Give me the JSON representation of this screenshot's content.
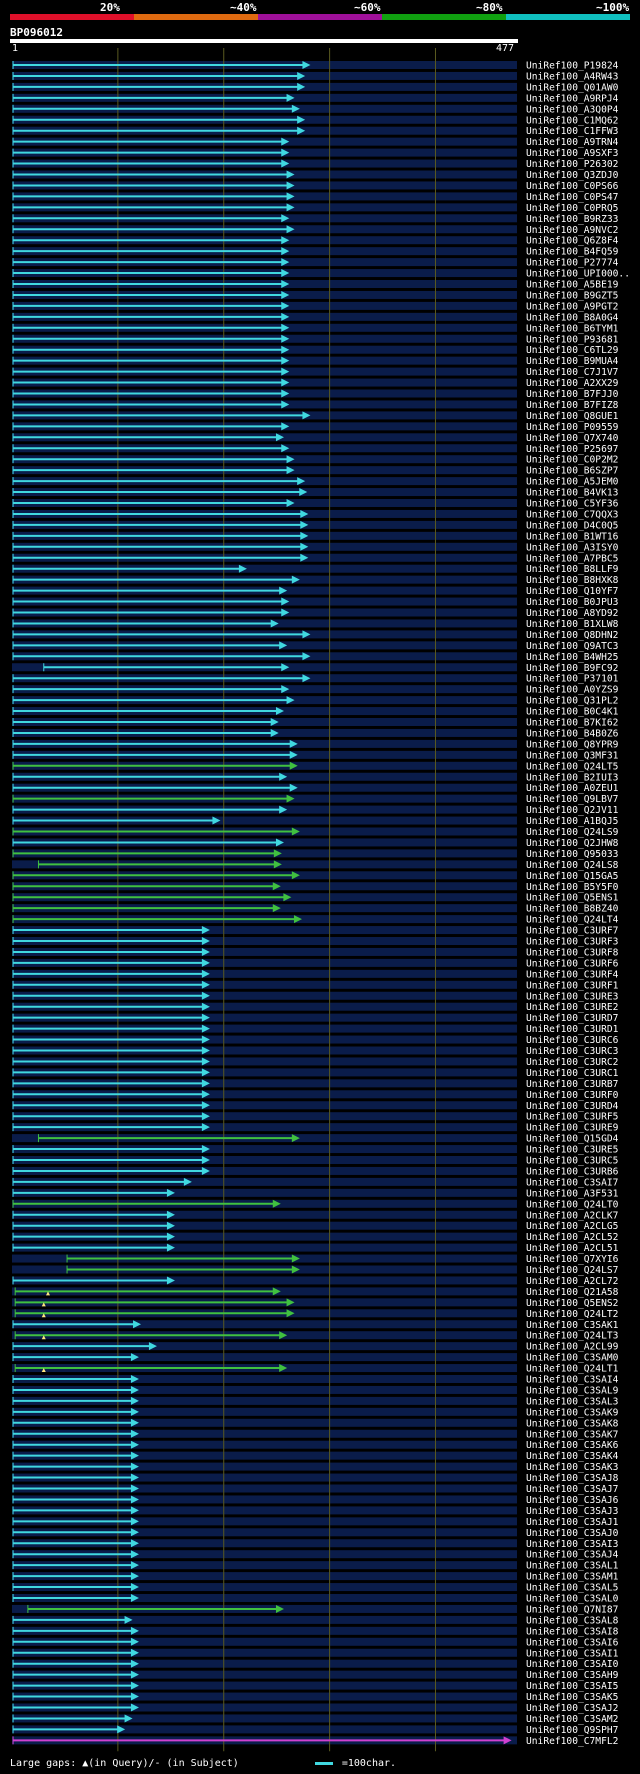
{
  "legend": [
    {
      "label": "20%",
      "color": "#e0102a"
    },
    {
      "label": "~40%",
      "color": "#e06a10"
    },
    {
      "label": "~60%",
      "color": "#a0109a"
    },
    {
      "label": "~80%",
      "color": "#10a010"
    },
    {
      "label": "~100%",
      "color": "#10c0c0"
    }
  ],
  "query": {
    "name": "BP096012",
    "start": "1",
    "end": "477"
  },
  "colors": {
    "cyan": "#40d8e0",
    "green": "#40c040",
    "magenta": "#d040d0",
    "grid": "#5a5a20",
    "row": "#0a1c4a"
  },
  "footer": {
    "gaps_text": "Large gaps: ▲(in Query)/- (in Subject)",
    "scale_text": "=100char."
  },
  "hits": [
    {
      "name": "UniRef100_P19824",
      "start": 1,
      "end": 280,
      "color": "cyan"
    },
    {
      "name": "UniRef100_A4RW43",
      "start": 1,
      "end": 275,
      "color": "cyan"
    },
    {
      "name": "UniRef100_Q01AW0",
      "start": 1,
      "end": 275,
      "color": "cyan"
    },
    {
      "name": "UniRef100_A9RPJ4",
      "start": 1,
      "end": 265,
      "color": "cyan"
    },
    {
      "name": "UniRef100_A3Q0P4",
      "start": 1,
      "end": 270,
      "color": "cyan"
    },
    {
      "name": "UniRef100_C1MQ62",
      "start": 1,
      "end": 275,
      "color": "cyan"
    },
    {
      "name": "UniRef100_C1FFW3",
      "start": 1,
      "end": 275,
      "color": "cyan"
    },
    {
      "name": "UniRef100_A9TRN4",
      "start": 1,
      "end": 260,
      "color": "cyan"
    },
    {
      "name": "UniRef100_A9SXF3",
      "start": 1,
      "end": 260,
      "color": "cyan"
    },
    {
      "name": "UniRef100_P26302",
      "start": 1,
      "end": 260,
      "color": "cyan"
    },
    {
      "name": "UniRef100_Q3ZDJ0",
      "start": 1,
      "end": 265,
      "color": "cyan"
    },
    {
      "name": "UniRef100_C0PS66",
      "start": 1,
      "end": 265,
      "color": "cyan"
    },
    {
      "name": "UniRef100_C0PS47",
      "start": 1,
      "end": 265,
      "color": "cyan"
    },
    {
      "name": "UniRef100_C0PRQ5",
      "start": 1,
      "end": 265,
      "color": "cyan"
    },
    {
      "name": "UniRef100_B9RZ33",
      "start": 1,
      "end": 260,
      "color": "cyan"
    },
    {
      "name": "UniRef100_A9NVC2",
      "start": 1,
      "end": 265,
      "color": "cyan"
    },
    {
      "name": "UniRef100_Q6Z8F4",
      "start": 1,
      "end": 260,
      "color": "cyan"
    },
    {
      "name": "UniRef100_B4FQ59",
      "start": 1,
      "end": 260,
      "color": "cyan"
    },
    {
      "name": "UniRef100_P27774",
      "start": 1,
      "end": 260,
      "color": "cyan"
    },
    {
      "name": "UniRef100_UPI000..",
      "start": 1,
      "end": 260,
      "color": "cyan"
    },
    {
      "name": "UniRef100_A5BE19",
      "start": 1,
      "end": 260,
      "color": "cyan"
    },
    {
      "name": "UniRef100_B9GZT5",
      "start": 1,
      "end": 260,
      "color": "cyan"
    },
    {
      "name": "UniRef100_A9PGT2",
      "start": 1,
      "end": 260,
      "color": "cyan"
    },
    {
      "name": "UniRef100_B8A0G4",
      "start": 1,
      "end": 260,
      "color": "cyan"
    },
    {
      "name": "UniRef100_B6TYM1",
      "start": 1,
      "end": 260,
      "color": "cyan"
    },
    {
      "name": "UniRef100_P93681",
      "start": 1,
      "end": 260,
      "color": "cyan"
    },
    {
      "name": "UniRef100_C6TL29",
      "start": 1,
      "end": 260,
      "color": "cyan"
    },
    {
      "name": "UniRef100_B9MUA4",
      "start": 1,
      "end": 260,
      "color": "cyan"
    },
    {
      "name": "UniRef100_C7J1V7",
      "start": 1,
      "end": 260,
      "color": "cyan"
    },
    {
      "name": "UniRef100_A2XX29",
      "start": 1,
      "end": 260,
      "color": "cyan"
    },
    {
      "name": "UniRef100_B7FJJ0",
      "start": 1,
      "end": 260,
      "color": "cyan"
    },
    {
      "name": "UniRef100_B7FIZ8",
      "start": 1,
      "end": 260,
      "color": "cyan"
    },
    {
      "name": "UniRef100_Q8GUE1",
      "start": 1,
      "end": 280,
      "color": "cyan"
    },
    {
      "name": "UniRef100_P09559",
      "start": 1,
      "end": 260,
      "color": "cyan"
    },
    {
      "name": "UniRef100_Q7X740",
      "start": 1,
      "end": 255,
      "color": "cyan"
    },
    {
      "name": "UniRef100_P25697",
      "start": 1,
      "end": 260,
      "color": "cyan"
    },
    {
      "name": "UniRef100_C0P2M2",
      "start": 1,
      "end": 265,
      "color": "cyan"
    },
    {
      "name": "UniRef100_B6SZP7",
      "start": 1,
      "end": 265,
      "color": "cyan"
    },
    {
      "name": "UniRef100_A5JEM0",
      "start": 1,
      "end": 275,
      "color": "cyan"
    },
    {
      "name": "UniRef100_B4VK13",
      "start": 1,
      "end": 277,
      "color": "cyan"
    },
    {
      "name": "UniRef100_C5YF36",
      "start": 1,
      "end": 265,
      "color": "cyan"
    },
    {
      "name": "UniRef100_C7QQX3",
      "start": 1,
      "end": 278,
      "color": "cyan"
    },
    {
      "name": "UniRef100_D4C0Q5",
      "start": 1,
      "end": 278,
      "color": "cyan"
    },
    {
      "name": "UniRef100_B1WT16",
      "start": 1,
      "end": 278,
      "color": "cyan"
    },
    {
      "name": "UniRef100_A3ISY0",
      "start": 1,
      "end": 278,
      "color": "cyan"
    },
    {
      "name": "UniRef100_A7PBC5",
      "start": 1,
      "end": 278,
      "color": "cyan"
    },
    {
      "name": "UniRef100_B8LLF9",
      "start": 1,
      "end": 220,
      "color": "cyan"
    },
    {
      "name": "UniRef100_B8HXK8",
      "start": 1,
      "end": 270,
      "color": "cyan"
    },
    {
      "name": "UniRef100_Q10YF7",
      "start": 1,
      "end": 258,
      "color": "cyan"
    },
    {
      "name": "UniRef100_B0JPU3",
      "start": 1,
      "end": 260,
      "color": "cyan"
    },
    {
      "name": "UniRef100_A8YD92",
      "start": 1,
      "end": 260,
      "color": "cyan"
    },
    {
      "name": "UniRef100_B1XLW8",
      "start": 1,
      "end": 250,
      "color": "cyan"
    },
    {
      "name": "UniRef100_Q8DHN2",
      "start": 1,
      "end": 280,
      "color": "cyan"
    },
    {
      "name": "UniRef100_Q9ATC3",
      "start": 1,
      "end": 258,
      "color": "cyan"
    },
    {
      "name": "UniRef100_B4WH25",
      "start": 1,
      "end": 280,
      "color": "cyan"
    },
    {
      "name": "UniRef100_B9FC92",
      "start": 30,
      "end": 260,
      "color": "cyan"
    },
    {
      "name": "UniRef100_P37101",
      "start": 1,
      "end": 280,
      "color": "cyan"
    },
    {
      "name": "UniRef100_A0YZS9",
      "start": 1,
      "end": 260,
      "color": "cyan"
    },
    {
      "name": "UniRef100_Q31PL2",
      "start": 1,
      "end": 265,
      "color": "cyan"
    },
    {
      "name": "UniRef100_B0C4K1",
      "start": 1,
      "end": 255,
      "color": "cyan"
    },
    {
      "name": "UniRef100_B7KI62",
      "start": 1,
      "end": 250,
      "color": "cyan"
    },
    {
      "name": "UniRef100_B4B0Z6",
      "start": 1,
      "end": 250,
      "color": "cyan"
    },
    {
      "name": "UniRef100_Q8YPR9",
      "start": 1,
      "end": 268,
      "color": "cyan"
    },
    {
      "name": "UniRef100_Q3MF31",
      "start": 1,
      "end": 268,
      "color": "cyan"
    },
    {
      "name": "UniRef100_Q24LT5",
      "start": 1,
      "end": 268,
      "color": "green"
    },
    {
      "name": "UniRef100_B2IUI3",
      "start": 1,
      "end": 258,
      "color": "cyan"
    },
    {
      "name": "UniRef100_A0ZEU1",
      "start": 1,
      "end": 268,
      "color": "cyan"
    },
    {
      "name": "UniRef100_Q9LBV7",
      "start": 1,
      "end": 265,
      "color": "green"
    },
    {
      "name": "UniRef100_Q2JV11",
      "start": 1,
      "end": 258,
      "color": "cyan"
    },
    {
      "name": "UniRef100_A1BQJ5",
      "start": 1,
      "end": 195,
      "color": "cyan"
    },
    {
      "name": "UniRef100_Q24LS9",
      "start": 1,
      "end": 270,
      "color": "green"
    },
    {
      "name": "UniRef100_Q2JHW8",
      "start": 1,
      "end": 255,
      "color": "cyan"
    },
    {
      "name": "UniRef100_Q95033",
      "start": 1,
      "end": 253,
      "color": "green"
    },
    {
      "name": "UniRef100_Q24LS8",
      "start": 25,
      "end": 253,
      "color": "green"
    },
    {
      "name": "UniRef100_Q15GA5",
      "start": 1,
      "end": 270,
      "color": "green"
    },
    {
      "name": "UniRef100_B5Y5F0",
      "start": 1,
      "end": 252,
      "color": "green"
    },
    {
      "name": "UniRef100_Q5ENS1",
      "start": 1,
      "end": 262,
      "color": "green"
    },
    {
      "name": "UniRef100_B8BZ40",
      "start": 1,
      "end": 252,
      "color": "green"
    },
    {
      "name": "UniRef100_Q24LT4",
      "start": 1,
      "end": 272,
      "color": "green"
    },
    {
      "name": "UniRef100_C3URF7",
      "start": 1,
      "end": 185,
      "color": "cyan"
    },
    {
      "name": "UniRef100_C3URF3",
      "start": 1,
      "end": 185,
      "color": "cyan"
    },
    {
      "name": "UniRef100_C3URF8",
      "start": 1,
      "end": 185,
      "color": "cyan"
    },
    {
      "name": "UniRef100_C3URF6",
      "start": 1,
      "end": 185,
      "color": "cyan"
    },
    {
      "name": "UniRef100_C3URF4",
      "start": 1,
      "end": 185,
      "color": "cyan"
    },
    {
      "name": "UniRef100_C3URF1",
      "start": 1,
      "end": 185,
      "color": "cyan"
    },
    {
      "name": "UniRef100_C3URE3",
      "start": 1,
      "end": 185,
      "color": "cyan"
    },
    {
      "name": "UniRef100_C3URE2",
      "start": 1,
      "end": 185,
      "color": "cyan"
    },
    {
      "name": "UniRef100_C3URD7",
      "start": 1,
      "end": 185,
      "color": "cyan"
    },
    {
      "name": "UniRef100_C3URD1",
      "start": 1,
      "end": 185,
      "color": "cyan"
    },
    {
      "name": "UniRef100_C3URC6",
      "start": 1,
      "end": 185,
      "color": "cyan"
    },
    {
      "name": "UniRef100_C3URC3",
      "start": 1,
      "end": 185,
      "color": "cyan"
    },
    {
      "name": "UniRef100_C3URC2",
      "start": 1,
      "end": 185,
      "color": "cyan"
    },
    {
      "name": "UniRef100_C3URC1",
      "start": 1,
      "end": 185,
      "color": "cyan"
    },
    {
      "name": "UniRef100_C3URB7",
      "start": 1,
      "end": 185,
      "color": "cyan"
    },
    {
      "name": "UniRef100_C3URF0",
      "start": 1,
      "end": 185,
      "color": "cyan"
    },
    {
      "name": "UniRef100_C3URD4",
      "start": 1,
      "end": 185,
      "color": "cyan"
    },
    {
      "name": "UniRef100_C3URF5",
      "start": 1,
      "end": 185,
      "color": "cyan"
    },
    {
      "name": "UniRef100_C3URE9",
      "start": 1,
      "end": 185,
      "color": "cyan"
    },
    {
      "name": "UniRef100_Q15GD4",
      "start": 25,
      "end": 270,
      "color": "green"
    },
    {
      "name": "UniRef100_C3URE5",
      "start": 1,
      "end": 185,
      "color": "cyan"
    },
    {
      "name": "UniRef100_C3URC5",
      "start": 1,
      "end": 185,
      "color": "cyan"
    },
    {
      "name": "UniRef100_C3URB6",
      "start": 1,
      "end": 185,
      "color": "cyan"
    },
    {
      "name": "UniRef100_C3SAI7",
      "start": 1,
      "end": 168,
      "color": "cyan"
    },
    {
      "name": "UniRef100_A3F531",
      "start": 1,
      "end": 152,
      "color": "cyan"
    },
    {
      "name": "UniRef100_Q24LT0",
      "start": 1,
      "end": 252,
      "color": "green"
    },
    {
      "name": "UniRef100_A2CLK7",
      "start": 1,
      "end": 152,
      "color": "cyan"
    },
    {
      "name": "UniRef100_A2CLG5",
      "start": 1,
      "end": 152,
      "color": "cyan"
    },
    {
      "name": "UniRef100_A2CL52",
      "start": 1,
      "end": 152,
      "color": "cyan"
    },
    {
      "name": "UniRef100_A2CL51",
      "start": 1,
      "end": 152,
      "color": "cyan"
    },
    {
      "name": "UniRef100_Q7XYI6",
      "start": 52,
      "end": 270,
      "color": "green"
    },
    {
      "name": "UniRef100_Q24LS7",
      "start": 52,
      "end": 270,
      "color": "green"
    },
    {
      "name": "UniRef100_A2CL72",
      "start": 1,
      "end": 152,
      "color": "cyan"
    },
    {
      "name": "UniRef100_Q21A58",
      "start": 3,
      "end": 252,
      "color": "green",
      "gap": 34
    },
    {
      "name": "UniRef100_Q5ENS2",
      "start": 3,
      "end": 265,
      "color": "green",
      "gap": 30
    },
    {
      "name": "UniRef100_Q24LT2",
      "start": 3,
      "end": 265,
      "color": "green",
      "gap": 30
    },
    {
      "name": "UniRef100_C3SAK1",
      "start": 1,
      "end": 120,
      "color": "cyan"
    },
    {
      "name": "UniRef100_Q24LT3",
      "start": 3,
      "end": 258,
      "color": "green",
      "gap": 30
    },
    {
      "name": "UniRef100_A2CL99",
      "start": 1,
      "end": 135,
      "color": "cyan"
    },
    {
      "name": "UniRef100_C3SAM0",
      "start": 1,
      "end": 118,
      "color": "cyan"
    },
    {
      "name": "UniRef100_Q24LT1",
      "start": 3,
      "end": 258,
      "color": "green",
      "gap": 30
    },
    {
      "name": "UniRef100_C3SAI4",
      "start": 1,
      "end": 118,
      "color": "cyan"
    },
    {
      "name": "UniRef100_C3SAL9",
      "start": 1,
      "end": 118,
      "color": "cyan"
    },
    {
      "name": "UniRef100_C3SAL3",
      "start": 1,
      "end": 118,
      "color": "cyan"
    },
    {
      "name": "UniRef100_C3SAK9",
      "start": 1,
      "end": 118,
      "color": "cyan"
    },
    {
      "name": "UniRef100_C3SAK8",
      "start": 1,
      "end": 118,
      "color": "cyan"
    },
    {
      "name": "UniRef100_C3SAK7",
      "start": 1,
      "end": 118,
      "color": "cyan"
    },
    {
      "name": "UniRef100_C3SAK6",
      "start": 1,
      "end": 118,
      "color": "cyan"
    },
    {
      "name": "UniRef100_C3SAK4",
      "start": 1,
      "end": 118,
      "color": "cyan"
    },
    {
      "name": "UniRef100_C3SAK3",
      "start": 1,
      "end": 118,
      "color": "cyan"
    },
    {
      "name": "UniRef100_C3SAJ8",
      "start": 1,
      "end": 118,
      "color": "cyan"
    },
    {
      "name": "UniRef100_C3SAJ7",
      "start": 1,
      "end": 118,
      "color": "cyan"
    },
    {
      "name": "UniRef100_C3SAJ6",
      "start": 1,
      "end": 118,
      "color": "cyan"
    },
    {
      "name": "UniRef100_C3SAJ3",
      "start": 1,
      "end": 118,
      "color": "cyan"
    },
    {
      "name": "UniRef100_C3SAJ1",
      "start": 1,
      "end": 118,
      "color": "cyan"
    },
    {
      "name": "UniRef100_C3SAJ0",
      "start": 1,
      "end": 118,
      "color": "cyan"
    },
    {
      "name": "UniRef100_C3SAI3",
      "start": 1,
      "end": 118,
      "color": "cyan"
    },
    {
      "name": "UniRef100_C3SAJ4",
      "start": 1,
      "end": 118,
      "color": "cyan"
    },
    {
      "name": "UniRef100_C3SAL1",
      "start": 1,
      "end": 118,
      "color": "cyan"
    },
    {
      "name": "UniRef100_C3SAM1",
      "start": 1,
      "end": 118,
      "color": "cyan"
    },
    {
      "name": "UniRef100_C3SAL5",
      "start": 1,
      "end": 118,
      "color": "cyan"
    },
    {
      "name": "UniRef100_C3SAL0",
      "start": 1,
      "end": 118,
      "color": "cyan"
    },
    {
      "name": "UniRef100_Q7NI87",
      "start": 15,
      "end": 255,
      "color": "green"
    },
    {
      "name": "UniRef100_C3SAL8",
      "start": 1,
      "end": 112,
      "color": "cyan"
    },
    {
      "name": "UniRef100_C3SAI8",
      "start": 1,
      "end": 118,
      "color": "cyan"
    },
    {
      "name": "UniRef100_C3SAI6",
      "start": 1,
      "end": 118,
      "color": "cyan"
    },
    {
      "name": "UniRef100_C3SAI1",
      "start": 1,
      "end": 118,
      "color": "cyan"
    },
    {
      "name": "UniRef100_C3SAI0",
      "start": 1,
      "end": 118,
      "color": "cyan"
    },
    {
      "name": "UniRef100_C3SAH9",
      "start": 1,
      "end": 118,
      "color": "cyan"
    },
    {
      "name": "UniRef100_C3SAI5",
      "start": 1,
      "end": 118,
      "color": "cyan"
    },
    {
      "name": "UniRef100_C3SAK5",
      "start": 1,
      "end": 118,
      "color": "cyan"
    },
    {
      "name": "UniRef100_C3SAJ2",
      "start": 1,
      "end": 118,
      "color": "cyan"
    },
    {
      "name": "UniRef100_C3SAM2",
      "start": 1,
      "end": 112,
      "color": "cyan"
    },
    {
      "name": "UniRef100_Q9SPH7",
      "start": 1,
      "end": 105,
      "color": "cyan"
    },
    {
      "name": "UniRef100_C7MFL2",
      "start": 1,
      "end": 470,
      "color": "magenta"
    }
  ]
}
